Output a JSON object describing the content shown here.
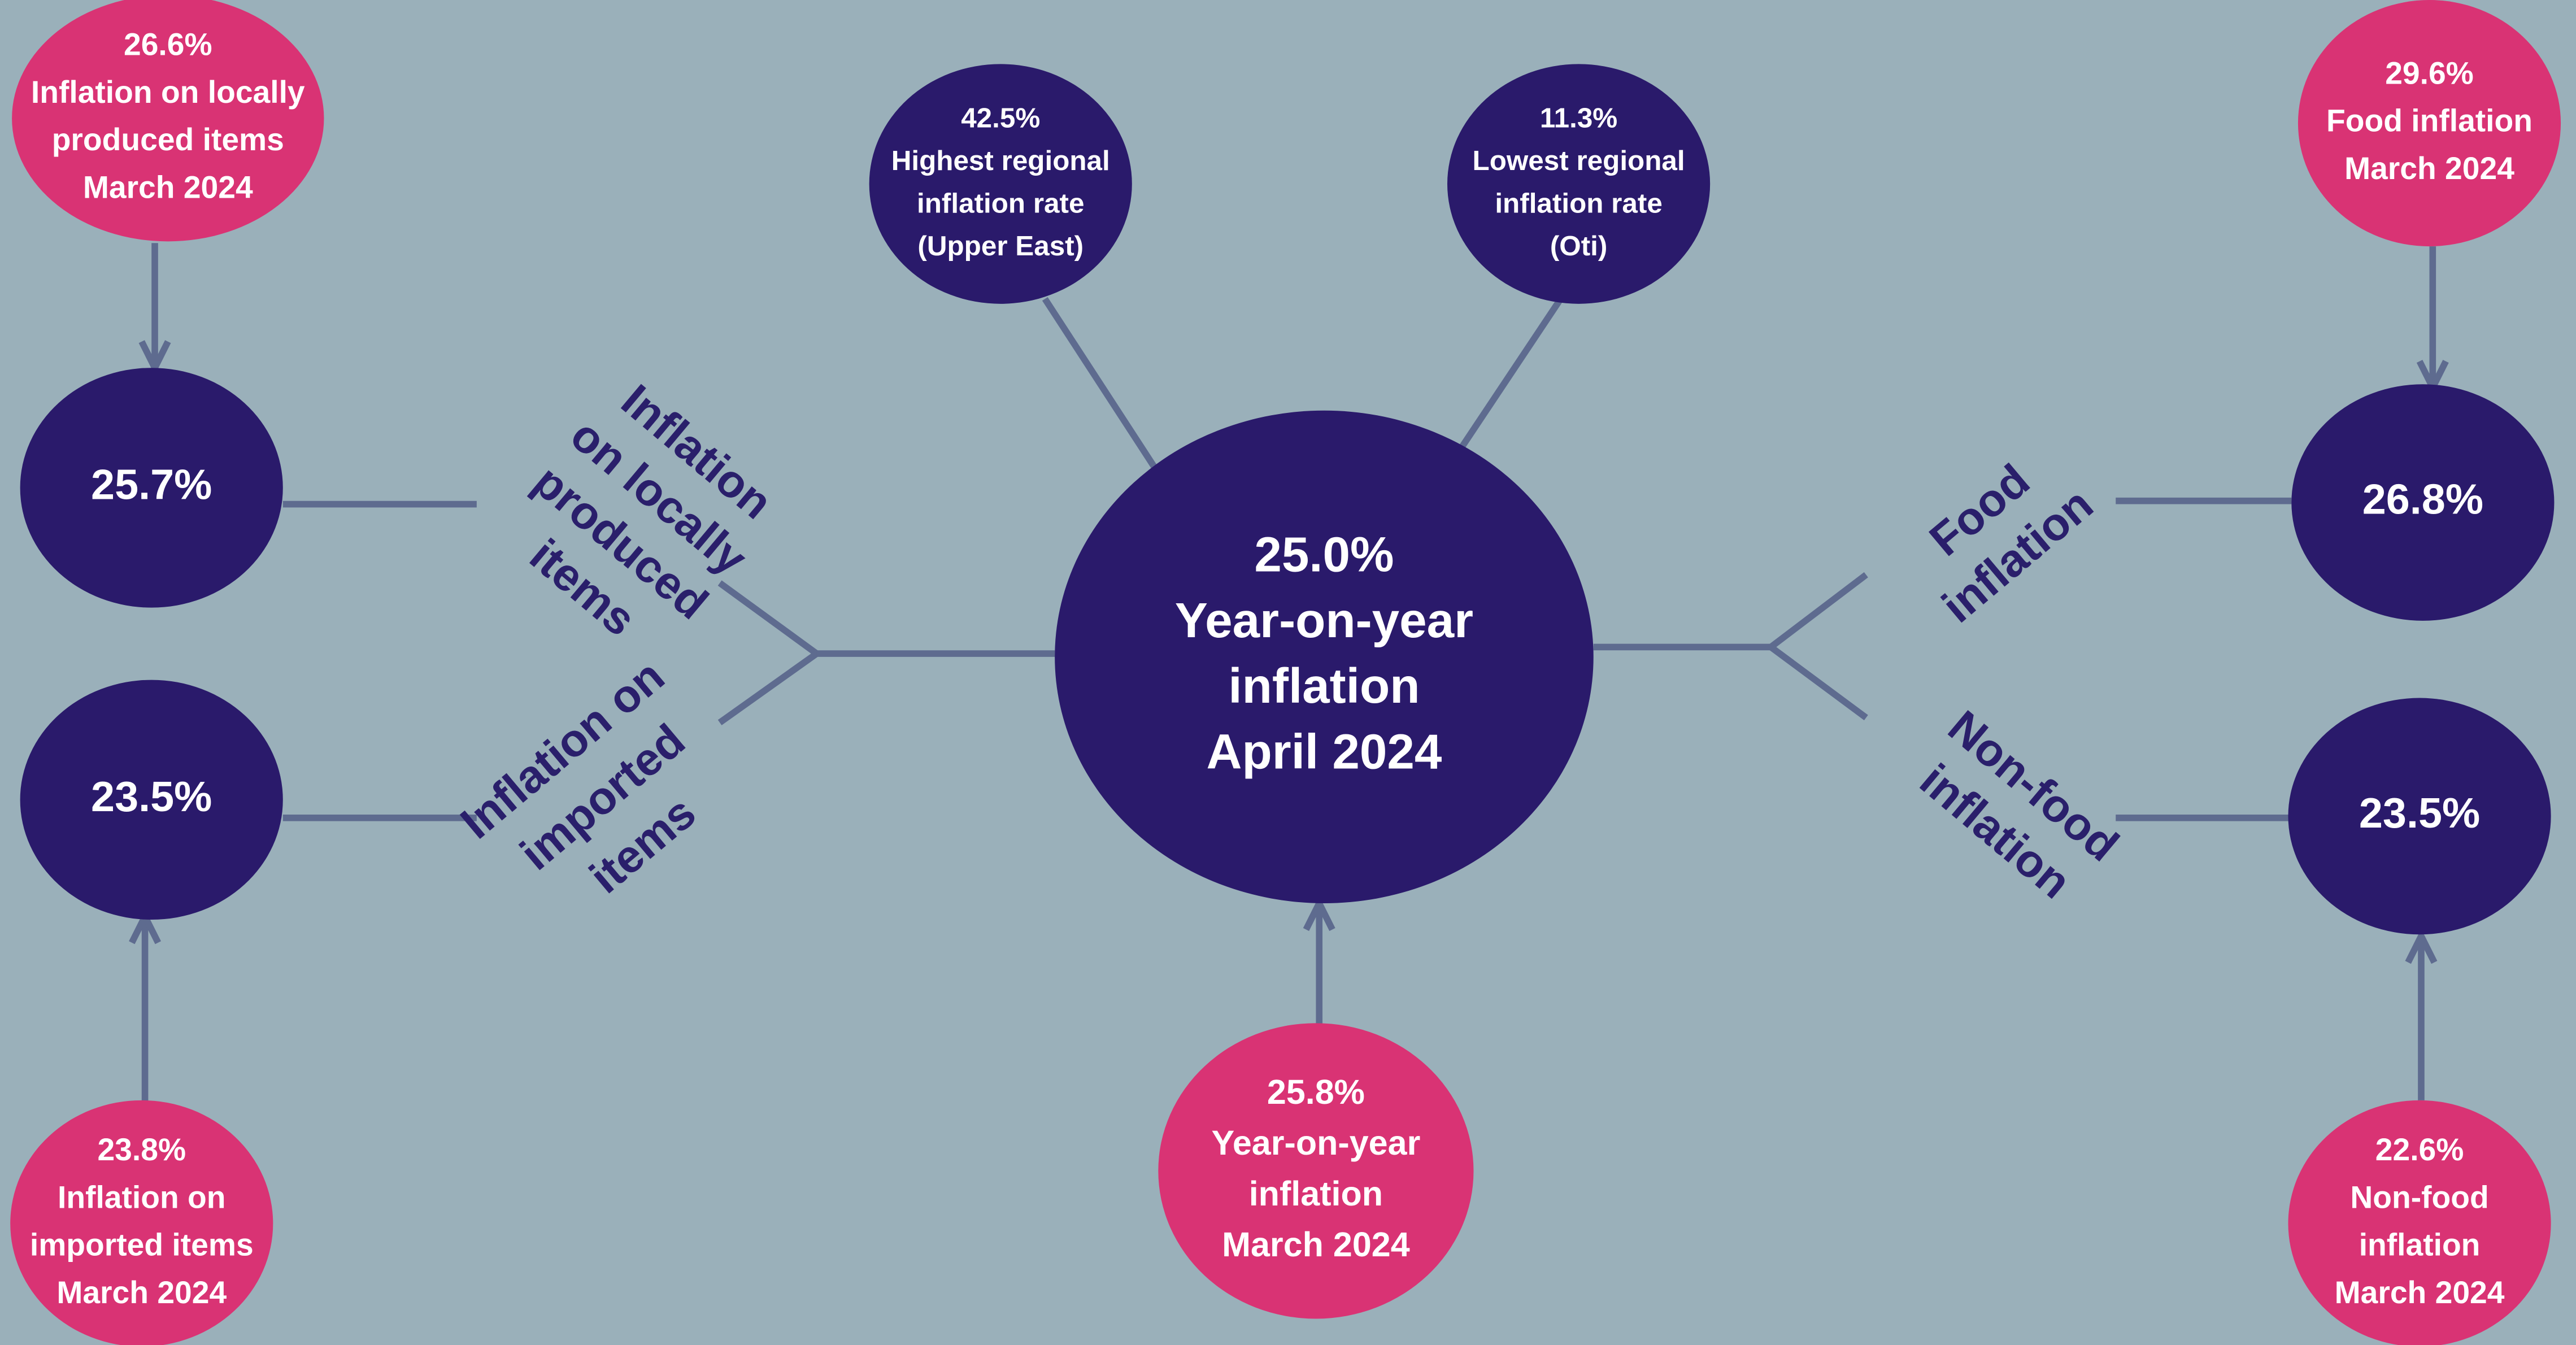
{
  "nodes": {
    "center": {
      "label": [
        "25.0%",
        "Year-on-year",
        "inflation",
        "April 2024"
      ]
    },
    "local_prev": {
      "label": [
        "26.6%",
        "Inflation on locally",
        "produced items",
        "March 2024"
      ]
    },
    "local_now": {
      "label": [
        "25.7%"
      ]
    },
    "imported_now": {
      "label": [
        "23.5%"
      ]
    },
    "imported_prev": {
      "label": [
        "23.8%",
        "Inflation on",
        "imported items",
        "March 2024"
      ]
    },
    "highest_region": {
      "label": [
        "42.5%",
        "Highest regional",
        "inflation rate",
        "(Upper East)"
      ]
    },
    "lowest_region": {
      "label": [
        "11.3%",
        "Lowest regional",
        "inflation rate",
        "(Oti)"
      ]
    },
    "center_prev": {
      "label": [
        "25.8%",
        "Year-on-year",
        "inflation",
        "March 2024"
      ]
    },
    "food_prev": {
      "label": [
        "29.6%",
        "Food inflation",
        "March 2024"
      ]
    },
    "food_now": {
      "label": [
        "26.8%"
      ]
    },
    "nonfood_now": {
      "label": [
        "23.5%"
      ]
    },
    "nonfood_prev": {
      "label": [
        "22.6%",
        "Non-food",
        "inflation",
        "March 2024"
      ]
    }
  },
  "branches": {
    "local": [
      "Inflation",
      "on locally",
      "produced",
      "items"
    ],
    "imported": [
      "Inflation on",
      "imported",
      "items"
    ],
    "food": [
      "Food",
      "inflation"
    ],
    "nonfood": [
      "Non-food",
      "inflation"
    ]
  }
}
